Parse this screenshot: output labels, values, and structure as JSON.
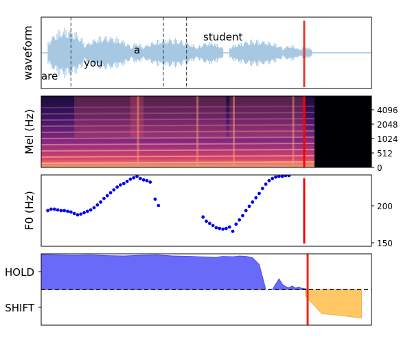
{
  "chart_data": [
    {
      "type": "line",
      "ylabel": "waveform",
      "words": [
        "are",
        "you",
        "a",
        "student"
      ],
      "boundaries_frac": [
        0.09,
        0.37,
        0.44
      ],
      "current_frame_frac": 0.795,
      "colors": {
        "wave": "#a6c8e3",
        "boundary": "#333333",
        "cursor": "#e03c31"
      }
    },
    {
      "type": "heatmap",
      "ylabel": "Mel (Hz)",
      "yticks": [
        "0",
        "512",
        "1024",
        "2048",
        "4096"
      ],
      "colormap": "magma",
      "current_frame_frac": 0.795
    },
    {
      "type": "scatter",
      "ylabel": "F0 (Hz)",
      "yticks": [
        "150",
        "200"
      ],
      "ylim": [
        146,
        246
      ],
      "series": [
        {
          "color": "#0000ee",
          "points": [
            [
              0.02,
              196
            ],
            [
              0.03,
              198
            ],
            [
              0.04,
              198
            ],
            [
              0.05,
              197
            ],
            [
              0.06,
              196
            ],
            [
              0.07,
              196
            ],
            [
              0.08,
              195
            ],
            [
              0.09,
              194
            ],
            [
              0.1,
              192
            ],
            [
              0.11,
              190
            ],
            [
              0.12,
              191
            ],
            [
              0.13,
              193
            ],
            [
              0.14,
              195
            ],
            [
              0.15,
              197
            ],
            [
              0.16,
              200
            ],
            [
              0.17,
              204
            ],
            [
              0.18,
              208
            ],
            [
              0.19,
              213
            ],
            [
              0.2,
              217
            ],
            [
              0.21,
              221
            ],
            [
              0.22,
              225
            ],
            [
              0.23,
              229
            ],
            [
              0.24,
              232
            ],
            [
              0.25,
              234
            ],
            [
              0.26,
              237
            ],
            [
              0.27,
              240
            ],
            [
              0.28,
              242
            ],
            [
              0.29,
              244
            ],
            [
              0.3,
              241
            ],
            [
              0.31,
              239
            ],
            [
              0.32,
              238
            ],
            [
              0.33,
              236
            ],
            [
              0.345,
              212
            ],
            [
              0.355,
              203
            ],
            [
              0.49,
              187
            ],
            [
              0.5,
              181
            ],
            [
              0.51,
              178
            ],
            [
              0.52,
              175
            ],
            [
              0.53,
              172
            ],
            [
              0.54,
              171
            ],
            [
              0.55,
              170
            ],
            [
              0.56,
              171
            ],
            [
              0.57,
              173
            ],
            [
              0.58,
              167
            ],
            [
              0.59,
              177
            ],
            [
              0.6,
              183
            ],
            [
              0.61,
              189
            ],
            [
              0.62,
              196
            ],
            [
              0.63,
              202
            ],
            [
              0.64,
              208
            ],
            [
              0.65,
              214
            ],
            [
              0.66,
              220
            ],
            [
              0.67,
              227
            ],
            [
              0.68,
              233
            ],
            [
              0.69,
              238
            ],
            [
              0.7,
              241
            ],
            [
              0.71,
              243
            ],
            [
              0.72,
              244
            ],
            [
              0.73,
              244
            ],
            [
              0.74,
              245
            ],
            [
              0.75,
              245
            ]
          ]
        }
      ],
      "current_frame_frac": 0.795
    },
    {
      "type": "area",
      "yticks": [
        "HOLD",
        "SHIFT"
      ],
      "ylim": [
        -1,
        1
      ],
      "threshold": 0,
      "series": [
        {
          "color": "#6a6af8",
          "points": [
            [
              0.0,
              0.98
            ],
            [
              0.05,
              0.97
            ],
            [
              0.1,
              0.96
            ],
            [
              0.15,
              0.97
            ],
            [
              0.2,
              0.95
            ],
            [
              0.25,
              0.94
            ],
            [
              0.3,
              0.96
            ],
            [
              0.35,
              0.97
            ],
            [
              0.4,
              0.94
            ],
            [
              0.45,
              0.93
            ],
            [
              0.5,
              0.91
            ],
            [
              0.53,
              0.9
            ],
            [
              0.55,
              0.93
            ],
            [
              0.58,
              0.92
            ],
            [
              0.6,
              0.94
            ],
            [
              0.62,
              0.93
            ],
            [
              0.64,
              0.89
            ],
            [
              0.66,
              0.7
            ],
            [
              0.68,
              0.0
            ]
          ]
        },
        {
          "color": "#6a6af8",
          "points": [
            [
              0.7,
              0.0
            ],
            [
              0.72,
              0.3
            ],
            [
              0.73,
              0.15
            ],
            [
              0.74,
              0.08
            ],
            [
              0.75,
              0.05
            ],
            [
              0.76,
              0.1
            ],
            [
              0.77,
              0.04
            ],
            [
              0.78,
              0.07
            ],
            [
              0.79,
              0.03
            ],
            [
              0.8,
              0.02
            ],
            [
              0.81,
              0.0
            ]
          ]
        },
        {
          "color": "#ffc766",
          "points": [
            [
              0.8,
              0.0
            ],
            [
              0.8,
              -0.18
            ],
            [
              0.85,
              -0.68
            ],
            [
              0.9,
              -0.72
            ],
            [
              0.95,
              -0.78
            ],
            [
              0.97,
              -0.8
            ],
            [
              0.97,
              0.0
            ]
          ]
        }
      ],
      "current_frame_frac": 0.795,
      "colors": {
        "cursor": "#e8251c",
        "threshold": "#000000"
      }
    }
  ]
}
